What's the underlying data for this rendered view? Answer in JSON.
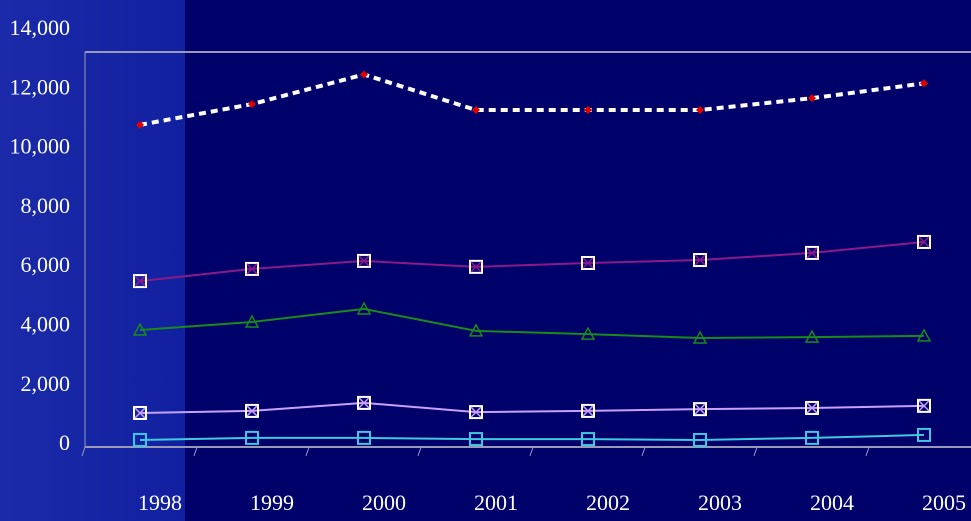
{
  "chart_data": {
    "type": "line",
    "categories": [
      "1998",
      "1999",
      "2000",
      "2001",
      "2002",
      "2003",
      "2004",
      "2005"
    ],
    "ylim": [
      0,
      14000
    ],
    "yticks": [
      {
        "value": 0,
        "label": "0"
      },
      {
        "value": 2000,
        "label": "2,000"
      },
      {
        "value": 4000,
        "label": "4,000"
      },
      {
        "value": 6000,
        "label": "6,000"
      },
      {
        "value": 8000,
        "label": "8,000"
      },
      {
        "value": 10000,
        "label": "10,000"
      },
      {
        "value": 12000,
        "label": "12,000"
      },
      {
        "value": 14000,
        "label": "14,000"
      }
    ],
    "series": [
      {
        "color": "#ffffff",
        "marker_color": "#e00000",
        "marker": "diamond",
        "dashed": true,
        "values": [
          10800,
          11500,
          12500,
          11300,
          11300,
          11300,
          11700,
          12200
        ]
      },
      {
        "color": "#8a1a8a",
        "marker_color": "#ffffff",
        "marker": "square-x",
        "dashed": false,
        "values": [
          5530,
          5940,
          6210,
          6010,
          6140,
          6240,
          6480,
          6850
        ]
      },
      {
        "color": "#1a8a1a",
        "marker_color": "#1a8a1a",
        "marker": "triangle",
        "dashed": false,
        "values": [
          3880,
          4150,
          4590,
          3850,
          3740,
          3610,
          3640,
          3680
        ]
      },
      {
        "color": "#c8a0ff",
        "marker_color": "#ffffff",
        "marker": "square-x",
        "dashed": false,
        "values": [
          1080,
          1150,
          1420,
          1110,
          1150,
          1210,
          1250,
          1320
        ]
      },
      {
        "color": "#40c8e0",
        "marker_color": "#40c8e0",
        "marker": "square",
        "dashed": false,
        "values": [
          170,
          240,
          240,
          200,
          200,
          170,
          240,
          340
        ]
      }
    ]
  }
}
